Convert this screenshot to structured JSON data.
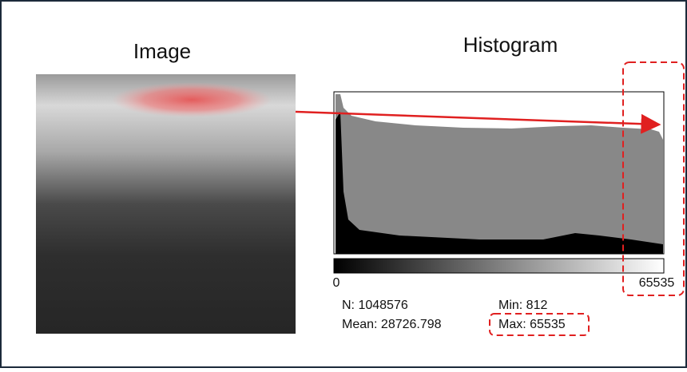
{
  "image_label": "Image",
  "histogram_label": "Histogram",
  "axis": {
    "min": "0",
    "max": "65535"
  },
  "stats": {
    "n": "N: 1048576",
    "mean": "Mean: 28726.798",
    "min": "Min: 812",
    "max": "Max: 65535"
  }
}
